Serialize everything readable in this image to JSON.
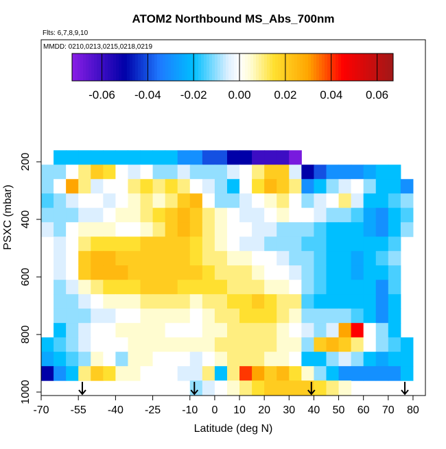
{
  "chart_data": {
    "type": "heatmap",
    "title": "ATOM2 Northbound MS_Abs_700nm",
    "subtitle": "Flts: 6,7,8,9,10",
    "annotation": "MMDD: 0210,0213,0215,0218,0219",
    "xlabel": "Latitude (deg N)",
    "ylabel": "PSXC (mbar)",
    "xlim": [
      -70,
      85
    ],
    "ylim": [
      1012,
      -224
    ],
    "xticks": [
      -70,
      -55,
      -40,
      -25,
      -10,
      0,
      10,
      20,
      30,
      40,
      50,
      60,
      70,
      80
    ],
    "yticks": [
      200,
      400,
      600,
      800,
      1000
    ],
    "x": [
      -67.5,
      -62.5,
      -57.5,
      -52.5,
      -47.5,
      -42.5,
      -37.5,
      -32.5,
      -27.5,
      -22.5,
      -17.5,
      -12.5,
      -7.5,
      -2.5,
      2.5,
      7.5,
      12.5,
      17.5,
      22.5,
      27.5,
      32.5,
      37.5,
      42.5,
      47.5,
      52.5,
      57.5,
      62.5,
      67.5,
      72.5,
      77.5
    ],
    "y": [
      185,
      235,
      285,
      335,
      385,
      435,
      485,
      535,
      585,
      635,
      685,
      735,
      785,
      835,
      885,
      935,
      985
    ],
    "z": [
      [
        null,
        -0.02,
        -0.02,
        -0.02,
        -0.02,
        -0.02,
        -0.02,
        -0.02,
        -0.02,
        -0.02,
        -0.02,
        -0.03,
        -0.03,
        -0.04,
        -0.04,
        -0.05,
        -0.05,
        -0.06,
        -0.06,
        -0.06,
        -0.07,
        null,
        null,
        null,
        null,
        null,
        null,
        null,
        null,
        null
      ],
      [
        -0.01,
        -0.01,
        0.0,
        0.01,
        0.02,
        0.015,
        0.0,
        -0.005,
        0.0,
        -0.01,
        -0.01,
        -0.005,
        -0.01,
        -0.01,
        -0.01,
        -0.005,
        0.0,
        0.01,
        0.02,
        0.02,
        -0.005,
        -0.05,
        -0.04,
        -0.03,
        -0.03,
        -0.03,
        -0.025,
        -0.02,
        -0.02,
        null
      ],
      [
        -0.01,
        0.0,
        0.03,
        0.01,
        -0.005,
        0.0,
        0.0,
        0.01,
        0.015,
        0.01,
        0.015,
        0.01,
        0.0,
        -0.005,
        -0.01,
        -0.02,
        0.0,
        0.015,
        0.025,
        0.02,
        0.01,
        -0.03,
        -0.02,
        -0.01,
        -0.005,
        0.0,
        -0.01,
        -0.02,
        -0.02,
        -0.03
      ],
      [
        -0.015,
        -0.01,
        -0.005,
        0.0,
        0.0,
        -0.005,
        0.0,
        0.005,
        0.01,
        0.005,
        0.01,
        0.02,
        0.025,
        0.0,
        -0.01,
        -0.01,
        -0.005,
        0.0,
        0.005,
        0.01,
        0.0,
        -0.01,
        -0.005,
        0.0,
        0.01,
        -0.005,
        -0.02,
        -0.02,
        -0.015,
        -0.01
      ],
      [
        -0.01,
        -0.01,
        -0.01,
        -0.005,
        -0.005,
        0.0,
        0.005,
        0.005,
        0.01,
        0.015,
        0.02,
        0.025,
        0.02,
        0.01,
        0.005,
        0.0,
        -0.005,
        -0.005,
        0.0,
        0.005,
        0.0,
        0.0,
        -0.005,
        -0.01,
        -0.01,
        -0.015,
        -0.025,
        -0.03,
        -0.02,
        -0.015
      ],
      [
        -0.005,
        -0.01,
        0.0,
        0.005,
        0.005,
        0.005,
        0.0,
        0.0,
        0.005,
        0.01,
        0.02,
        0.025,
        0.02,
        0.01,
        0.005,
        0.0,
        0.0,
        -0.005,
        -0.005,
        -0.01,
        -0.01,
        -0.01,
        -0.015,
        -0.02,
        -0.02,
        -0.02,
        -0.025,
        -0.03,
        -0.02,
        -0.01
      ],
      [
        null,
        -0.005,
        0.0,
        0.01,
        0.015,
        0.015,
        0.015,
        0.015,
        0.02,
        0.02,
        0.02,
        0.02,
        0.015,
        0.01,
        0.005,
        0.0,
        -0.005,
        -0.005,
        -0.01,
        -0.01,
        -0.01,
        -0.015,
        -0.015,
        -0.02,
        -0.02,
        -0.02,
        -0.02,
        -0.02,
        -0.015,
        null
      ],
      [
        null,
        -0.005,
        0.0,
        0.02,
        0.025,
        0.025,
        0.02,
        0.02,
        0.02,
        0.02,
        0.02,
        0.02,
        0.015,
        0.01,
        0.01,
        0.005,
        0.005,
        0.0,
        0.0,
        -0.005,
        -0.01,
        -0.01,
        -0.015,
        -0.02,
        -0.02,
        -0.025,
        -0.02,
        -0.015,
        -0.01,
        null
      ],
      [
        null,
        -0.005,
        0.0,
        0.02,
        0.025,
        0.025,
        0.025,
        0.02,
        0.02,
        0.02,
        0.02,
        0.02,
        0.02,
        0.015,
        0.01,
        0.01,
        0.01,
        0.005,
        0.0,
        0.0,
        -0.005,
        -0.01,
        -0.015,
        -0.02,
        -0.02,
        -0.025,
        -0.02,
        -0.02,
        -0.015,
        null
      ],
      [
        null,
        -0.01,
        -0.005,
        0.005,
        0.01,
        0.015,
        0.015,
        0.015,
        0.02,
        0.02,
        0.02,
        0.015,
        0.015,
        0.015,
        0.015,
        0.01,
        0.01,
        0.01,
        0.005,
        0.005,
        0.0,
        -0.01,
        -0.015,
        -0.02,
        -0.02,
        -0.02,
        -0.02,
        -0.03,
        -0.015,
        null
      ],
      [
        null,
        -0.01,
        -0.01,
        -0.005,
        0.0,
        0.005,
        0.005,
        0.005,
        0.01,
        0.01,
        0.01,
        0.01,
        0.005,
        0.01,
        0.01,
        0.015,
        0.015,
        0.02,
        0.015,
        0.01,
        0.01,
        -0.015,
        -0.02,
        -0.02,
        -0.02,
        -0.02,
        -0.02,
        -0.03,
        -0.02,
        null
      ],
      [
        null,
        -0.01,
        -0.01,
        -0.01,
        -0.005,
        -0.005,
        0.0,
        0.0,
        0.005,
        0.005,
        0.005,
        0.005,
        0.0,
        0.005,
        0.01,
        0.01,
        0.015,
        0.015,
        0.015,
        0.01,
        0.005,
        -0.01,
        -0.01,
        -0.01,
        -0.01,
        -0.015,
        -0.02,
        -0.03,
        -0.02,
        null
      ],
      [
        null,
        -0.02,
        -0.01,
        -0.005,
        0.0,
        0.0,
        0.005,
        0.005,
        0.005,
        0.005,
        0.0,
        0.0,
        0.0,
        0.005,
        0.005,
        0.01,
        0.01,
        0.01,
        0.01,
        0.005,
        0.0,
        -0.005,
        -0.01,
        -0.005,
        0.03,
        0.045,
        0.0,
        -0.01,
        -0.02,
        null
      ],
      [
        -0.02,
        -0.015,
        -0.01,
        -0.005,
        0.0,
        0.0,
        0.0,
        0.005,
        0.005,
        0.005,
        0.005,
        0.005,
        0.005,
        0.005,
        0.01,
        0.01,
        0.01,
        0.01,
        0.01,
        0.005,
        0.005,
        -0.01,
        0.02,
        0.025,
        0.02,
        0.01,
        0.0,
        -0.01,
        -0.015,
        -0.02
      ],
      [
        -0.025,
        -0.02,
        -0.015,
        -0.01,
        0.005,
        0.0,
        -0.01,
        0.005,
        0.005,
        0.0,
        0.0,
        0.0,
        -0.005,
        0.0,
        0.005,
        0.01,
        0.01,
        0.01,
        0.005,
        0.005,
        0.0,
        -0.02,
        -0.02,
        -0.01,
        -0.005,
        -0.01,
        -0.02,
        -0.025,
        -0.02,
        -0.02
      ],
      [
        -0.05,
        -0.03,
        -0.02,
        0.01,
        0.02,
        0.015,
        0.005,
        0.005,
        0.0,
        0.0,
        0.0,
        -0.005,
        -0.005,
        0.01,
        -0.02,
        0.01,
        0.04,
        0.03,
        0.02,
        0.025,
        0.015,
        0.005,
        -0.01,
        -0.02,
        -0.03,
        -0.03,
        -0.03,
        -0.03,
        -0.03,
        -0.02
      ],
      [
        null,
        null,
        null,
        null,
        null,
        null,
        null,
        null,
        null,
        null,
        null,
        null,
        -0.01,
        -0.005,
        0.0,
        0.005,
        0.01,
        0.015,
        0.02,
        0.02,
        0.02,
        0.02,
        0.015,
        0.01,
        0.005,
        null,
        null,
        null,
        null,
        null
      ]
    ],
    "zlim": [
      -0.073,
      0.067
    ],
    "zticks": [
      -0.06,
      -0.04,
      -0.02,
      {
        "value": 0,
        "label": "0.00"
      },
      0.02,
      0.04,
      0.06
    ],
    "colorscale": [
      [
        -0.073,
        "#8a1ee6"
      ],
      [
        -0.05,
        "#0000a8"
      ],
      [
        -0.035,
        "#1e78ff"
      ],
      [
        -0.02,
        "#00bfff"
      ],
      [
        -0.005,
        "#dcefff"
      ],
      [
        0,
        "#ffffff"
      ],
      [
        0.005,
        "#fffcd0"
      ],
      [
        0.015,
        "#ffe030"
      ],
      [
        0.03,
        "#ffa500"
      ],
      [
        0.045,
        "#ff0000"
      ],
      [
        0.067,
        "#a01818"
      ]
    ],
    "markers": [
      -53.4,
      -8.2,
      39,
      76.7
    ]
  }
}
